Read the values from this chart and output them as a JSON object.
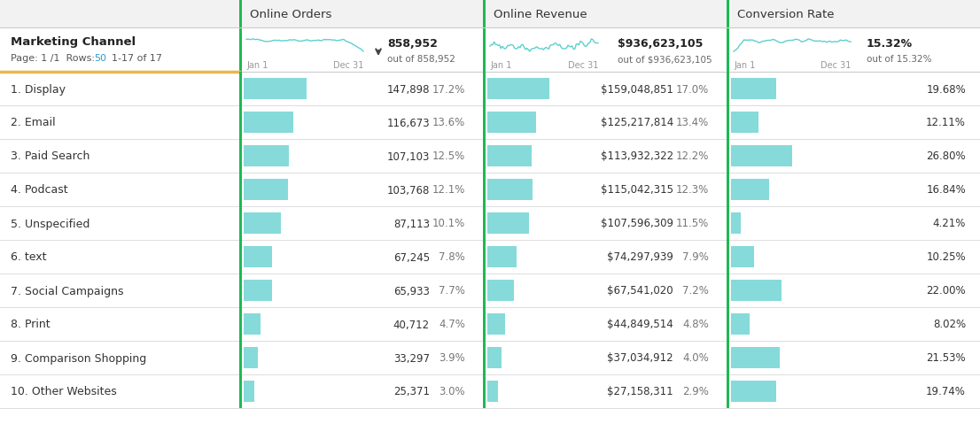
{
  "col1_header": "Marketing Channel",
  "col1_subheader_blue": "50",
  "col2_header": "Online Orders",
  "col2_total": "858,952",
  "col2_total_sub": "out of 858,952",
  "col3_header": "Online Revenue",
  "col3_total": "$936,623,105",
  "col3_total_sub": "out of $936,623,105",
  "col4_header": "Conversion Rate",
  "col4_total": "15.32%",
  "col4_total_sub": "out of 15.32%",
  "rows": [
    {
      "rank": "1.",
      "name": "Display",
      "orders": "147,898",
      "orders_pct": "17.2%",
      "orders_bar": 17.2,
      "revenue": "$159,048,851",
      "revenue_pct": "17.0%",
      "revenue_bar": 17.0,
      "conv": "19.68%",
      "conv_bar": 19.68
    },
    {
      "rank": "2.",
      "name": "Email",
      "orders": "116,673",
      "orders_pct": "13.6%",
      "orders_bar": 13.6,
      "revenue": "$125,217,814",
      "revenue_pct": "13.4%",
      "revenue_bar": 13.4,
      "conv": "12.11%",
      "conv_bar": 12.11
    },
    {
      "rank": "3.",
      "name": "Paid Search",
      "orders": "107,103",
      "orders_pct": "12.5%",
      "orders_bar": 12.5,
      "revenue": "$113,932,322",
      "revenue_pct": "12.2%",
      "revenue_bar": 12.2,
      "conv": "26.80%",
      "conv_bar": 26.8
    },
    {
      "rank": "4.",
      "name": "Podcast",
      "orders": "103,768",
      "orders_pct": "12.1%",
      "orders_bar": 12.1,
      "revenue": "$115,042,315",
      "revenue_pct": "12.3%",
      "revenue_bar": 12.3,
      "conv": "16.84%",
      "conv_bar": 16.84
    },
    {
      "rank": "5.",
      "name": "Unspecified",
      "orders": "87,113",
      "orders_pct": "10.1%",
      "orders_bar": 10.1,
      "revenue": "$107,596,309",
      "revenue_pct": "11.5%",
      "revenue_bar": 11.5,
      "conv": "4.21%",
      "conv_bar": 4.21
    },
    {
      "rank": "6.",
      "name": "text",
      "orders": "67,245",
      "orders_pct": "7.8%",
      "orders_bar": 7.8,
      "revenue": "$74,297,939",
      "revenue_pct": "7.9%",
      "revenue_bar": 7.9,
      "conv": "10.25%",
      "conv_bar": 10.25
    },
    {
      "rank": "7.",
      "name": "Social Campaigns",
      "orders": "65,933",
      "orders_pct": "7.7%",
      "orders_bar": 7.7,
      "revenue": "$67,541,020",
      "revenue_pct": "7.2%",
      "revenue_bar": 7.2,
      "conv": "22.00%",
      "conv_bar": 22.0
    },
    {
      "rank": "8.",
      "name": "Print",
      "orders": "40,712",
      "orders_pct": "4.7%",
      "orders_bar": 4.7,
      "revenue": "$44,849,514",
      "revenue_pct": "4.8%",
      "revenue_bar": 4.8,
      "conv": "8.02%",
      "conv_bar": 8.02
    },
    {
      "rank": "9.",
      "name": "Comparison Shopping",
      "orders": "33,297",
      "orders_pct": "3.9%",
      "orders_bar": 3.9,
      "revenue": "$37,034,912",
      "revenue_pct": "4.0%",
      "revenue_bar": 4.0,
      "conv": "21.53%",
      "conv_bar": 21.53
    },
    {
      "rank": "10.",
      "name": "Other Websites",
      "orders": "25,371",
      "orders_pct": "3.0%",
      "orders_bar": 3.0,
      "revenue": "$27,158,311",
      "revenue_pct": "2.9%",
      "revenue_bar": 2.9,
      "conv": "19.74%",
      "conv_bar": 19.74
    }
  ],
  "bar_color": "#86DADA",
  "bar_max": 17.5,
  "conv_bar_max": 28.0,
  "header_bg": "#f2f2f2",
  "spark_color": "#5ecfcf",
  "green_sep": "#1db954",
  "gold_line": "#e8b84b"
}
